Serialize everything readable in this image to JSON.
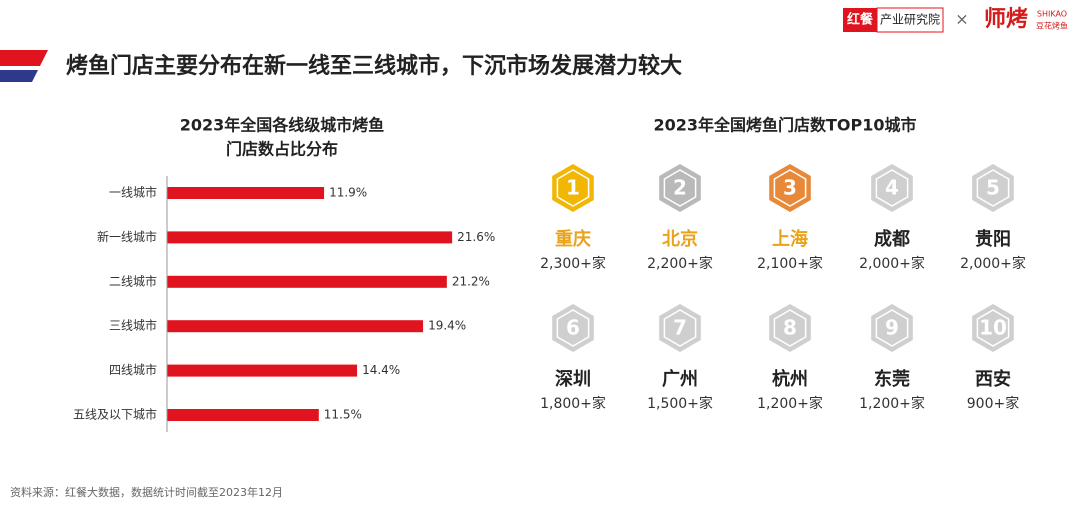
{
  "header": {
    "title": "烤鱼门店主要分布在新一线至三线城市，下沉市场发展潜力较大",
    "brand": "红餐",
    "brand_sub": "产业研究院",
    "times": "×",
    "partner": "师烤",
    "partner_en": "SHIKAO",
    "partner_sub": "豆花烤鱼"
  },
  "chart_data": {
    "type": "bar",
    "orientation": "horizontal",
    "title": [
      "2023年全国各线级城市烤鱼",
      "门店数占比分布"
    ],
    "categories": [
      "一线城市",
      "新一线城市",
      "二线城市",
      "三线城市",
      "四线城市",
      "五线及以下城市"
    ],
    "values": [
      11.9,
      21.6,
      21.2,
      19.4,
      14.4,
      11.5
    ],
    "value_labels": [
      "11.9%",
      "21.6%",
      "21.2%",
      "19.4%",
      "14.4%",
      "11.5%"
    ],
    "color": "#e0141e"
  },
  "ranking": {
    "title": "2023年全国烤鱼门店数TOP10城市",
    "medal_colors": [
      "#f2b705",
      "#b9b9b9",
      "#e8893a"
    ],
    "default_color": "#cfcfcf",
    "top_city_color": "#eaa21a",
    "items": [
      {
        "rank": 1,
        "city": "重庆",
        "count": "2,300+家"
      },
      {
        "rank": 2,
        "city": "北京",
        "count": "2,200+家"
      },
      {
        "rank": 3,
        "city": "上海",
        "count": "2,100+家"
      },
      {
        "rank": 4,
        "city": "成都",
        "count": "2,000+家"
      },
      {
        "rank": 5,
        "city": "贵阳",
        "count": "2,000+家"
      },
      {
        "rank": 6,
        "city": "深圳",
        "count": "1,800+家"
      },
      {
        "rank": 7,
        "city": "广州",
        "count": "1,500+家"
      },
      {
        "rank": 8,
        "city": "杭州",
        "count": "1,200+家"
      },
      {
        "rank": 9,
        "city": "东莞",
        "count": "1,200+家"
      },
      {
        "rank": 10,
        "city": "西安",
        "count": "900+家"
      }
    ]
  },
  "footer": {
    "source": "资料来源：红餐大数据，数据统计时间截至2023年12月"
  }
}
